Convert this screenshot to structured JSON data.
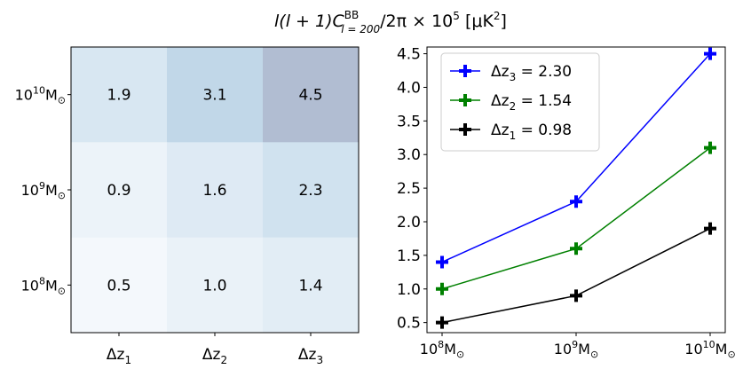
{
  "figure_title": "l(l + 1)C_l=200^BB/2π × 10^5 [μK^2]",
  "title_parts": {
    "prefix": "l(l + 1)C",
    "sup": "BB",
    "sub": "l = 200",
    "suffix": "/2π × 10",
    "exp": "5",
    "unit_pre": " [μK",
    "unit_exp": "2",
    "unit_post": "]"
  },
  "chart_data": [
    {
      "type": "heatmap",
      "title": "",
      "x_categories": [
        "Δz1",
        "Δz2",
        "Δz3"
      ],
      "x_labels": [
        {
          "base": "Δz",
          "sub": "1"
        },
        {
          "base": "Δz",
          "sub": "2"
        },
        {
          "base": "Δz",
          "sub": "3"
        }
      ],
      "y_categories": [
        "10^10M⊙",
        "10^9M⊙",
        "10^8M⊙"
      ],
      "y_labels": [
        {
          "base": "10",
          "exp": "10",
          "unit": "M",
          "unit_sub": "⊙"
        },
        {
          "base": "10",
          "exp": "9",
          "unit": "M",
          "unit_sub": "⊙"
        },
        {
          "base": "10",
          "exp": "8",
          "unit": "M",
          "unit_sub": "⊙"
        }
      ],
      "values": [
        [
          1.9,
          3.1,
          4.5
        ],
        [
          0.9,
          1.6,
          2.3
        ],
        [
          0.5,
          1.0,
          1.4
        ]
      ],
      "cell_labels": [
        [
          "1.9",
          "3.1",
          "4.5"
        ],
        [
          "0.9",
          "1.6",
          "2.3"
        ],
        [
          "0.5",
          "1.0",
          "1.4"
        ]
      ],
      "colormap": "blues-to-slate",
      "colors": {
        "low": "#f4f8fc",
        "mid": "#c2d9ea",
        "high": "#b1bdd2"
      }
    },
    {
      "type": "line",
      "title": "",
      "x_categories": [
        "10^8M⊙",
        "10^9M⊙",
        "10^10M⊙"
      ],
      "x_labels": [
        {
          "base": "10",
          "exp": "8",
          "unit": "M",
          "unit_sub": "⊙"
        },
        {
          "base": "10",
          "exp": "9",
          "unit": "M",
          "unit_sub": "⊙"
        },
        {
          "base": "10",
          "exp": "10",
          "unit": "M",
          "unit_sub": "⊙"
        }
      ],
      "ylim": [
        0.35,
        4.6
      ],
      "yticks": [
        0.5,
        1.0,
        1.5,
        2.0,
        2.5,
        3.0,
        3.5,
        4.0,
        4.5
      ],
      "ytick_labels": [
        "0.5",
        "1.0",
        "1.5",
        "2.0",
        "2.5",
        "3.0",
        "3.5",
        "4.0",
        "4.5"
      ],
      "xlabel": "",
      "ylabel": "",
      "grid": false,
      "legend_position": "top-left",
      "series": [
        {
          "name": "Δz3 = 2.30",
          "legend_base": "Δz",
          "legend_sub": "3",
          "legend_value": " = 2.30",
          "values": [
            1.4,
            2.3,
            4.5
          ],
          "color": "#0000ff"
        },
        {
          "name": "Δz2 = 1.54",
          "legend_base": "Δz",
          "legend_sub": "2",
          "legend_value": " = 1.54",
          "values": [
            1.0,
            1.6,
            3.1
          ],
          "color": "#008000"
        },
        {
          "name": "Δz1 = 0.98",
          "legend_base": "Δz",
          "legend_sub": "1",
          "legend_value": " = 0.98",
          "values": [
            0.5,
            0.9,
            1.9
          ],
          "color": "#000000"
        }
      ]
    }
  ]
}
